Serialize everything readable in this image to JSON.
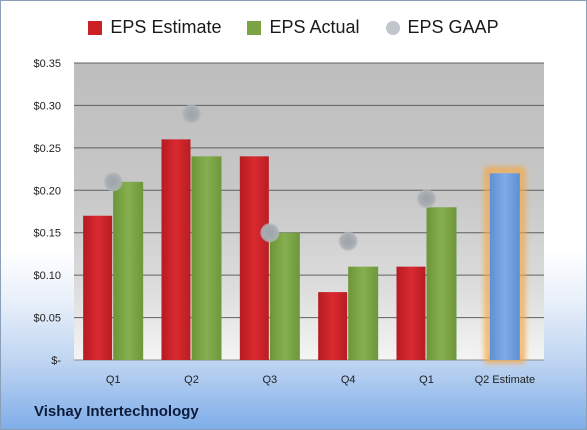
{
  "legend": {
    "items": [
      {
        "label": "EPS Estimate",
        "color": "#cc2027",
        "shape": "square"
      },
      {
        "label": "EPS Actual",
        "color": "#7aa444",
        "shape": "square"
      },
      {
        "label": "EPS GAAP",
        "color": "#c0c6cc",
        "shape": "circle"
      }
    ]
  },
  "company_name": "Vishay Intertechnology",
  "chart_data": {
    "type": "bar",
    "categories": [
      "Q1",
      "Q2",
      "Q3",
      "Q4",
      "Q1",
      "Q2 Estimate"
    ],
    "series": [
      {
        "name": "EPS Estimate",
        "type": "bar",
        "color": "#cc2027",
        "values": [
          0.17,
          0.26,
          0.24,
          0.08,
          0.11,
          null
        ]
      },
      {
        "name": "EPS Actual",
        "type": "bar",
        "color": "#7aa444",
        "values": [
          0.21,
          0.24,
          0.15,
          0.11,
          0.18,
          null
        ]
      },
      {
        "name": "EPS GAAP",
        "type": "scatter",
        "color": "#a9aeb3",
        "values": [
          0.21,
          0.29,
          0.15,
          0.14,
          0.19,
          null
        ]
      },
      {
        "name": "Q2 Estimate",
        "type": "bar",
        "color": "#6f9fdc",
        "highlight": "#f5a94a",
        "values": [
          null,
          null,
          null,
          null,
          null,
          0.22
        ]
      }
    ],
    "ylim": [
      0,
      0.35
    ],
    "yticks": [
      0,
      0.05,
      0.1,
      0.15,
      0.2,
      0.25,
      0.3,
      0.35
    ],
    "ytick_labels": [
      "$-",
      "$0.05",
      "$0.10",
      "$0.15",
      "$0.20",
      "$0.25",
      "$0.30",
      "$0.35"
    ],
    "grid": true
  }
}
